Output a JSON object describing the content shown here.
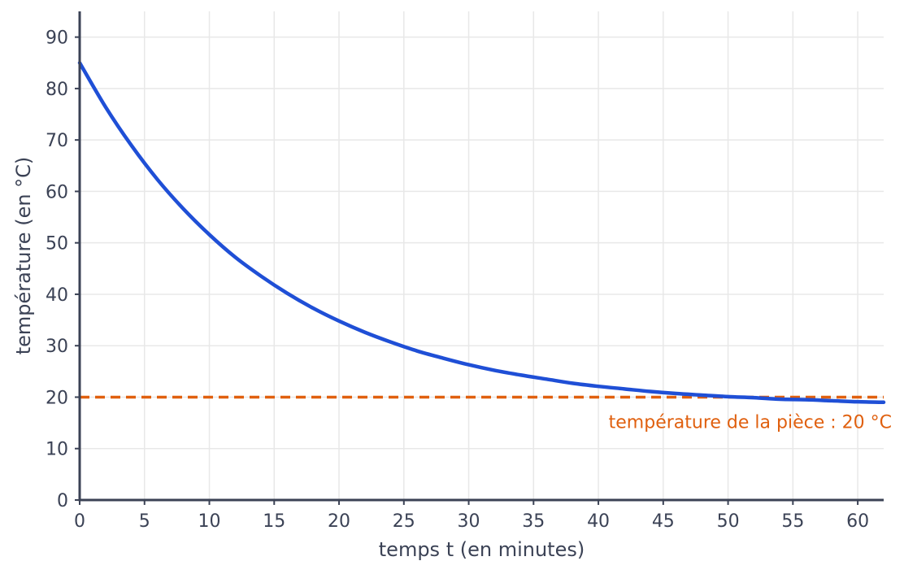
{
  "chart_data": {
    "type": "line",
    "title": "",
    "xlabel": "temps t (en minutes)",
    "ylabel": "température (en °C)",
    "xlim": [
      0,
      62
    ],
    "ylim": [
      0,
      95
    ],
    "x_ticks": [
      0,
      5,
      10,
      15,
      20,
      25,
      30,
      35,
      40,
      45,
      50,
      55,
      60
    ],
    "y_ticks": [
      0,
      10,
      20,
      30,
      40,
      50,
      60,
      70,
      80,
      90
    ],
    "grid": true,
    "series": [
      {
        "color": "#1f4fd6",
        "x": [
          0,
          2,
          4,
          6,
          8,
          10,
          12,
          14,
          16,
          18,
          20,
          22,
          24,
          26,
          28,
          30,
          32,
          34,
          36,
          38,
          40,
          42,
          44,
          46,
          48,
          50,
          52,
          54,
          56,
          58,
          60,
          62
        ],
        "y": [
          85.0,
          76.4,
          68.9,
          62.3,
          56.6,
          51.6,
          47.2,
          43.5,
          40.2,
          37.3,
          34.8,
          32.6,
          30.7,
          29.0,
          27.6,
          26.3,
          25.2,
          24.3,
          23.5,
          22.7,
          22.1,
          21.6,
          21.1,
          20.7,
          20.4,
          20.1,
          19.9,
          19.6,
          19.5,
          19.3,
          19.1,
          19.0
        ]
      }
    ],
    "reference_line": {
      "y": 20,
      "label": "température de la pièce : 20 °C",
      "color": "#e0600f",
      "style": "dashed"
    }
  },
  "colors": {
    "axis": "#3b4255",
    "grid": "#e8e8e8",
    "curve": "#1f4fd6",
    "reference": "#e0600f"
  }
}
